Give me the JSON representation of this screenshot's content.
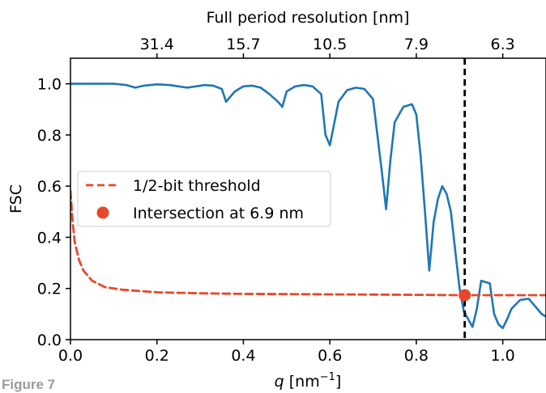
{
  "figure_caption": "Figure 7",
  "colors": {
    "fsc_curve": "#1f77b4",
    "threshold": "#e8472a",
    "intersection": "#e8472a",
    "cutoff_line": "#000000"
  },
  "chart_data": {
    "type": "line",
    "xlabel": "q  [nm⁻¹]",
    "ylabel": "FSC",
    "x2label": "Full period resolution [nm]",
    "xlim": [
      0.0,
      1.1
    ],
    "ylim": [
      0.0,
      1.1
    ],
    "xticks": [
      0.0,
      0.2,
      0.4,
      0.6,
      0.8,
      1.0
    ],
    "xtick_labels": [
      "0.0",
      "0.2",
      "0.4",
      "0.6",
      "0.8",
      "1.0"
    ],
    "yticks": [
      0.0,
      0.2,
      0.4,
      0.6,
      0.8,
      1.0
    ],
    "ytick_labels": [
      "0.0",
      "0.2",
      "0.4",
      "0.6",
      "0.8",
      "1.0"
    ],
    "x2ticks": [
      0.2,
      0.4,
      0.6,
      0.8,
      1.0
    ],
    "x2tick_labels": [
      "31.4",
      "15.7",
      "10.5",
      "7.9",
      "6.3"
    ],
    "legend_placement": "center-left",
    "grid": false,
    "series": [
      {
        "key": "fsc",
        "style": "solid",
        "x": [
          0.0,
          0.05,
          0.1,
          0.13,
          0.15,
          0.17,
          0.2,
          0.23,
          0.25,
          0.27,
          0.29,
          0.31,
          0.33,
          0.35,
          0.36,
          0.38,
          0.4,
          0.42,
          0.44,
          0.46,
          0.48,
          0.49,
          0.5,
          0.52,
          0.54,
          0.56,
          0.58,
          0.59,
          0.6,
          0.62,
          0.64,
          0.66,
          0.68,
          0.7,
          0.72,
          0.73,
          0.74,
          0.75,
          0.77,
          0.79,
          0.8,
          0.81,
          0.82,
          0.83,
          0.84,
          0.85,
          0.86,
          0.87,
          0.88,
          0.89,
          0.9,
          0.91,
          0.93,
          0.94,
          0.95,
          0.97,
          0.98,
          0.99,
          1.0,
          1.01,
          1.02,
          1.04,
          1.06,
          1.07,
          1.08,
          1.09,
          1.1
        ],
        "y": [
          1.0,
          1.0,
          1.0,
          0.995,
          0.985,
          0.993,
          0.998,
          0.995,
          0.99,
          0.985,
          0.99,
          0.995,
          0.993,
          0.98,
          0.93,
          0.97,
          0.99,
          0.993,
          0.985,
          0.96,
          0.93,
          0.91,
          0.97,
          0.99,
          0.995,
          0.99,
          0.96,
          0.8,
          0.76,
          0.93,
          0.975,
          0.985,
          0.98,
          0.94,
          0.66,
          0.51,
          0.7,
          0.85,
          0.91,
          0.92,
          0.88,
          0.72,
          0.5,
          0.27,
          0.46,
          0.55,
          0.6,
          0.57,
          0.5,
          0.35,
          0.2,
          0.11,
          0.05,
          0.12,
          0.23,
          0.22,
          0.1,
          0.06,
          0.045,
          0.08,
          0.12,
          0.155,
          0.16,
          0.14,
          0.12,
          0.1,
          0.09
        ]
      },
      {
        "key": "threshold",
        "name": "1/2-bit threshold",
        "style": "dashed",
        "x": [
          0.0,
          0.005,
          0.01,
          0.02,
          0.03,
          0.05,
          0.08,
          0.12,
          0.2,
          0.3,
          0.4,
          0.5,
          0.6,
          0.7,
          0.8,
          0.9,
          1.0,
          1.1
        ],
        "y": [
          0.58,
          0.46,
          0.38,
          0.31,
          0.27,
          0.23,
          0.205,
          0.195,
          0.185,
          0.181,
          0.179,
          0.178,
          0.177,
          0.176,
          0.175,
          0.174,
          0.174,
          0.174
        ]
      }
    ],
    "intersection": {
      "name": "Intersection at 6.9 nm",
      "x": 0.912,
      "y": 0.174
    },
    "vline": {
      "x": 0.912,
      "style": "dashed"
    }
  }
}
